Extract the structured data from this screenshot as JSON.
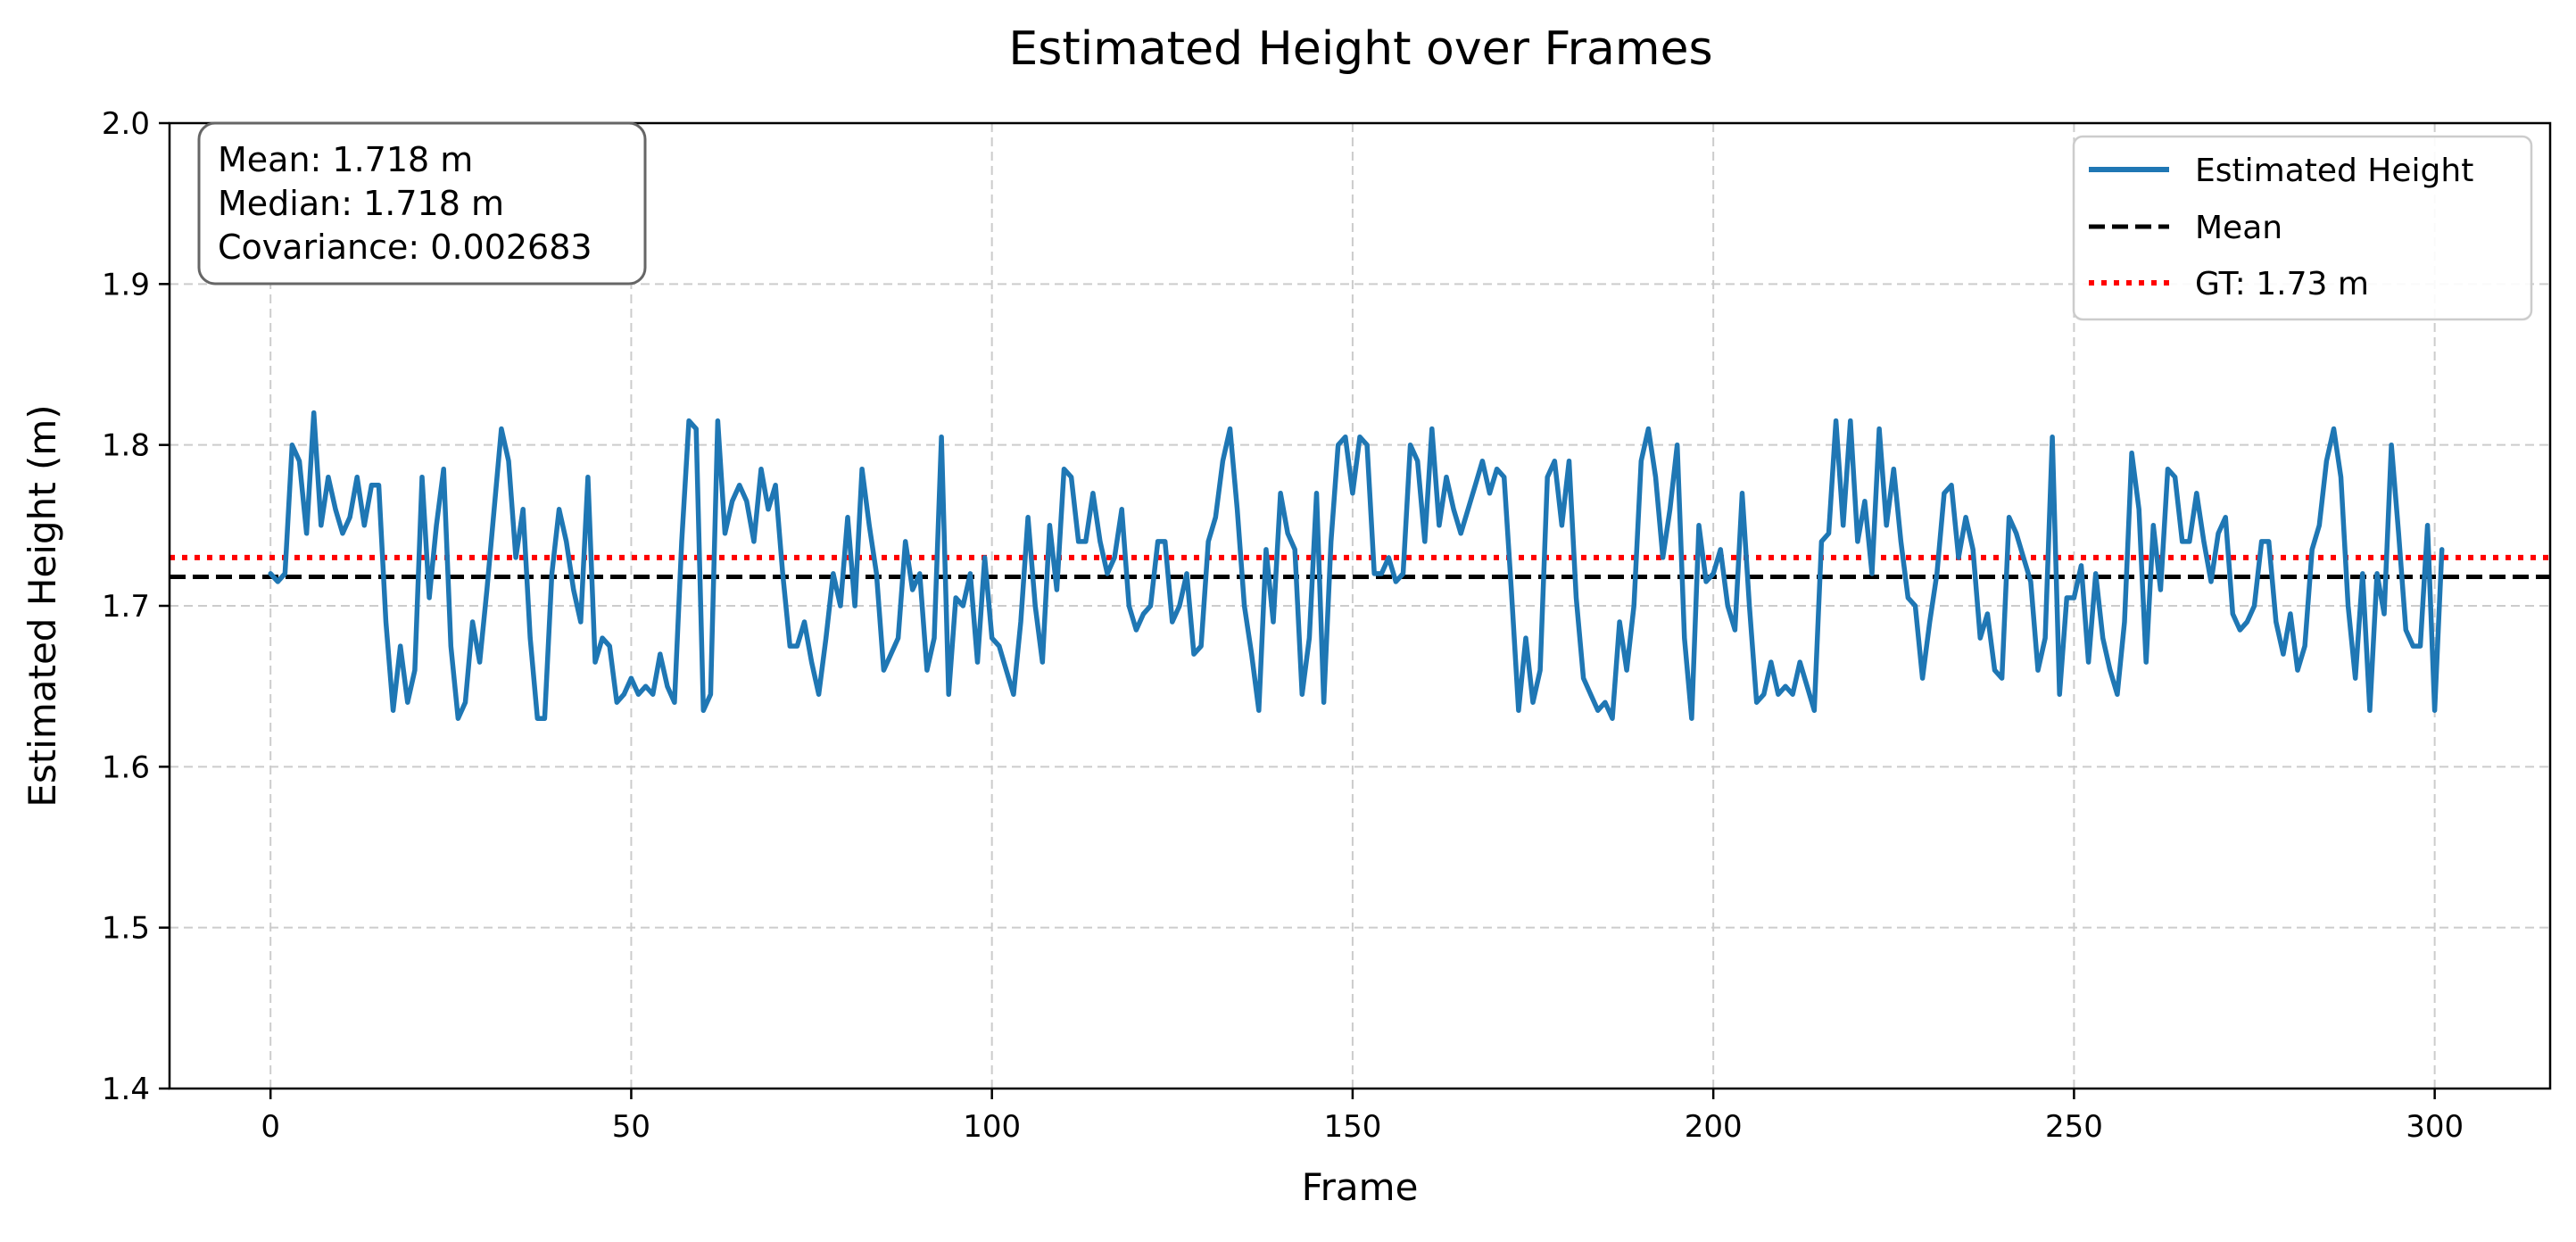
{
  "chart_data": {
    "type": "line",
    "title": "Estimated Height over Frames",
    "xlabel": "Frame",
    "ylabel": "Estimated Height (m)",
    "xlim": [
      -14,
      316
    ],
    "ylim": [
      1.4,
      2.0
    ],
    "xticks": [
      0,
      50,
      100,
      150,
      200,
      250,
      300
    ],
    "yticks": [
      1.4,
      1.5,
      1.6,
      1.7,
      1.8,
      1.9,
      2.0
    ],
    "xtick_labels": [
      "0",
      "50",
      "100",
      "150",
      "200",
      "250",
      "300"
    ],
    "ytick_labels": [
      "1.4",
      "1.5",
      "1.6",
      "1.7",
      "1.8",
      "1.9",
      "2.0"
    ],
    "grid": true,
    "legend_position": "top-right",
    "stats_box_position": "top-left",
    "colors": {
      "estimated": "#1f77b4",
      "mean": "#000000",
      "gt": "#ff0000",
      "grid": "#cccccc",
      "stats_border": "#666666"
    },
    "stats": {
      "mean": "Mean: 1.718 m",
      "median": "Median: 1.718 m",
      "covariance": "Covariance: 0.002683"
    },
    "reference_lines": [
      {
        "name": "Mean",
        "value": 1.718,
        "style": "dashed"
      },
      {
        "name": "GT: 1.73 m",
        "value": 1.73,
        "style": "dotted"
      }
    ],
    "series": [
      {
        "name": "Estimated Height",
        "x": [
          0,
          1,
          2,
          3,
          4,
          5,
          6,
          7,
          8,
          9,
          10,
          11,
          12,
          13,
          14,
          15,
          16,
          17,
          18,
          19,
          20,
          21,
          22,
          23,
          24,
          25,
          26,
          27,
          28,
          29,
          30,
          31,
          32,
          33,
          34,
          35,
          36,
          37,
          38,
          39,
          40,
          41,
          42,
          43,
          44,
          45,
          46,
          47,
          48,
          49,
          50,
          51,
          52,
          53,
          54,
          55,
          56,
          57,
          58,
          59,
          60,
          61,
          62,
          63,
          64,
          65,
          66,
          67,
          68,
          69,
          70,
          71,
          72,
          73,
          74,
          75,
          76,
          77,
          78,
          79,
          80,
          81,
          82,
          83,
          84,
          85,
          86,
          87,
          88,
          89,
          90,
          91,
          92,
          93,
          94,
          95,
          96,
          97,
          98,
          99,
          100,
          101,
          102,
          103,
          104,
          105,
          106,
          107,
          108,
          109,
          110,
          111,
          112,
          113,
          114,
          115,
          116,
          117,
          118,
          119,
          120,
          121,
          122,
          123,
          124,
          125,
          126,
          127,
          128,
          129,
          130,
          131,
          132,
          133,
          134,
          135,
          136,
          137,
          138,
          139,
          140,
          141,
          142,
          143,
          144,
          145,
          146,
          147,
          148,
          149,
          150,
          151,
          152,
          153,
          154,
          155,
          156,
          157,
          158,
          159,
          160,
          161,
          162,
          163,
          164,
          165,
          166,
          167,
          168,
          169,
          170,
          171,
          172,
          173,
          174,
          175,
          176,
          177,
          178,
          179,
          180,
          181,
          182,
          183,
          184,
          185,
          186,
          187,
          188,
          189,
          190,
          191,
          192,
          193,
          194,
          195,
          196,
          197,
          198,
          199,
          200,
          201,
          202,
          203,
          204,
          205,
          206,
          207,
          208,
          209,
          210,
          211,
          212,
          213,
          214,
          215,
          216,
          217,
          218,
          219,
          220,
          221,
          222,
          223,
          224,
          225,
          226,
          227,
          228,
          229,
          230,
          231,
          232,
          233,
          234,
          235,
          236,
          237,
          238,
          239,
          240,
          241,
          242,
          243,
          244,
          245,
          246,
          247,
          248,
          249,
          250,
          251,
          252,
          253,
          254,
          255,
          256,
          257,
          258,
          259,
          260,
          261,
          262,
          263,
          264,
          265,
          266,
          267,
          268,
          269,
          270,
          271,
          272,
          273,
          274,
          275,
          276,
          277,
          278,
          279,
          280,
          281,
          282,
          283,
          284,
          285,
          286,
          287,
          288,
          289,
          290,
          291,
          292,
          293,
          294,
          295,
          296,
          297,
          298,
          299,
          300,
          301
        ],
        "y": [
          1.72,
          1.715,
          1.72,
          1.8,
          1.79,
          1.745,
          1.82,
          1.75,
          1.78,
          1.76,
          1.745,
          1.755,
          1.78,
          1.75,
          1.775,
          1.775,
          1.69,
          1.635,
          1.675,
          1.64,
          1.66,
          1.78,
          1.705,
          1.75,
          1.785,
          1.675,
          1.63,
          1.64,
          1.69,
          1.665,
          1.71,
          1.76,
          1.81,
          1.79,
          1.73,
          1.76,
          1.68,
          1.63,
          1.63,
          1.72,
          1.76,
          1.74,
          1.71,
          1.69,
          1.78,
          1.665,
          1.68,
          1.675,
          1.64,
          1.645,
          1.655,
          1.645,
          1.65,
          1.645,
          1.67,
          1.65,
          1.64,
          1.74,
          1.815,
          1.81,
          1.635,
          1.645,
          1.815,
          1.745,
          1.765,
          1.775,
          1.765,
          1.74,
          1.785,
          1.76,
          1.775,
          1.72,
          1.675,
          1.675,
          1.69,
          1.665,
          1.645,
          1.68,
          1.72,
          1.7,
          1.755,
          1.7,
          1.785,
          1.75,
          1.72,
          1.66,
          1.67,
          1.68,
          1.74,
          1.71,
          1.72,
          1.66,
          1.68,
          1.805,
          1.645,
          1.705,
          1.7,
          1.72,
          1.665,
          1.73,
          1.68,
          1.675,
          1.66,
          1.645,
          1.69,
          1.755,
          1.7,
          1.665,
          1.75,
          1.71,
          1.785,
          1.78,
          1.74,
          1.74,
          1.77,
          1.74,
          1.72,
          1.73,
          1.76,
          1.7,
          1.685,
          1.695,
          1.7,
          1.74,
          1.74,
          1.69,
          1.7,
          1.72,
          1.67,
          1.675,
          1.74,
          1.755,
          1.79,
          1.81,
          1.76,
          1.7,
          1.67,
          1.635,
          1.735,
          1.69,
          1.77,
          1.745,
          1.735,
          1.645,
          1.68,
          1.77,
          1.64,
          1.74,
          1.8,
          1.805,
          1.77,
          1.805,
          1.8,
          1.72,
          1.72,
          1.73,
          1.715,
          1.72,
          1.8,
          1.79,
          1.74,
          1.81,
          1.75,
          1.78,
          1.76,
          1.745,
          1.76,
          1.775,
          1.79,
          1.77,
          1.785,
          1.78,
          1.71,
          1.635,
          1.68,
          1.64,
          1.66,
          1.78,
          1.79,
          1.75,
          1.79,
          1.705,
          1.655,
          1.645,
          1.635,
          1.64,
          1.63,
          1.69,
          1.66,
          1.7,
          1.79,
          1.81,
          1.78,
          1.73,
          1.76,
          1.8,
          1.68,
          1.63,
          1.75,
          1.715,
          1.72,
          1.735,
          1.7,
          1.685,
          1.77,
          1.7,
          1.64,
          1.645,
          1.665,
          1.645,
          1.65,
          1.645,
          1.665,
          1.65,
          1.635,
          1.74,
          1.745,
          1.815,
          1.75,
          1.815,
          1.74,
          1.765,
          1.72,
          1.81,
          1.75,
          1.785,
          1.74,
          1.705,
          1.7,
          1.655,
          1.69,
          1.72,
          1.77,
          1.775,
          1.73,
          1.755,
          1.735,
          1.68,
          1.695,
          1.66,
          1.655,
          1.755,
          1.745,
          1.73,
          1.715,
          1.66,
          1.68,
          1.805,
          1.645,
          1.705,
          1.705,
          1.725,
          1.665,
          1.72,
          1.68,
          1.66,
          1.645,
          1.69,
          1.795,
          1.76,
          1.665,
          1.75,
          1.71,
          1.785,
          1.78,
          1.74,
          1.74,
          1.77,
          1.74,
          1.715,
          1.745,
          1.755,
          1.695,
          1.685,
          1.69,
          1.7,
          1.74,
          1.74,
          1.69,
          1.67,
          1.695,
          1.66,
          1.675,
          1.735,
          1.75,
          1.79,
          1.81,
          1.78,
          1.7,
          1.655,
          1.72,
          1.635,
          1.72,
          1.695,
          1.8,
          1.745,
          1.685,
          1.675,
          1.675,
          1.75,
          1.635,
          1.735
        ]
      }
    ]
  }
}
